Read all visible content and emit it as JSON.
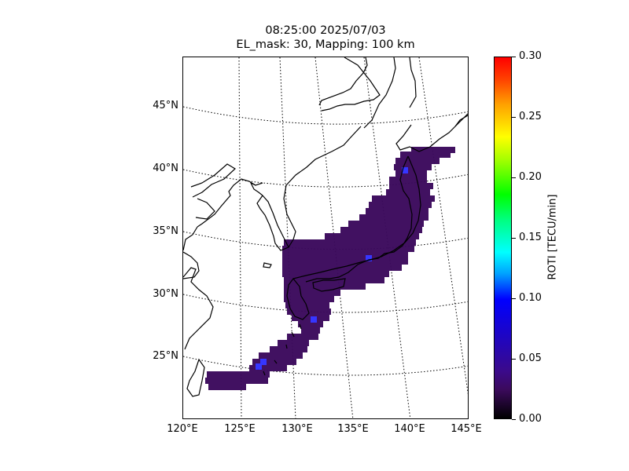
{
  "title": {
    "line1": "08:25:00 2025/07/03",
    "line2": "EL_mask: 30, Mapping: 100 km"
  },
  "map": {
    "lat_labels": [
      "45°N",
      "40°N",
      "35°N",
      "30°N",
      "25°N"
    ],
    "lon_labels": [
      "120°E",
      "125°E",
      "130°E",
      "135°E",
      "140°E",
      "145°E"
    ],
    "coverage_color_dominant": "#3b0a5c",
    "coverage_color_enhanced": "#3030ff",
    "grid_style": "dotted",
    "coastline_color": "#000000"
  },
  "colorbar": {
    "label": "ROTI [TECU/min]",
    "ticks": [
      "0.00",
      "0.05",
      "0.10",
      "0.15",
      "0.20",
      "0.25",
      "0.30"
    ],
    "colormap": "nipy_spectral",
    "range": [
      0.0,
      0.3
    ]
  }
}
